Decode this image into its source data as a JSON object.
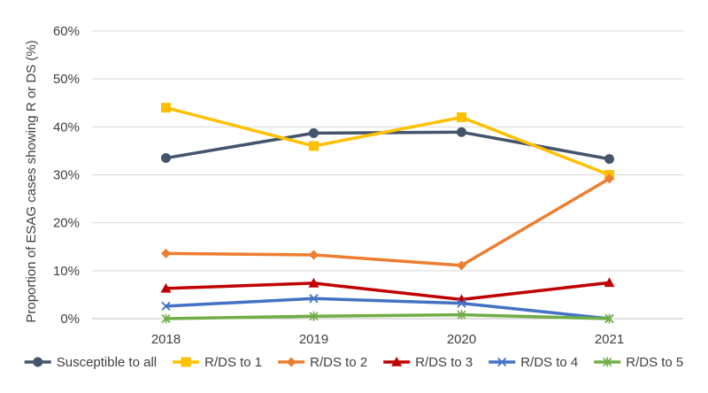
{
  "chart_data": {
    "type": "line",
    "title": "",
    "xlabel": "",
    "ylabel": "Proportion of ESAG cases showing R or DS (%)",
    "categories": [
      "2018",
      "2019",
      "2020",
      "2021"
    ],
    "ylim": [
      0,
      60
    ],
    "yticks": [
      0,
      10,
      20,
      30,
      40,
      50,
      60
    ],
    "ytick_labels": [
      "0%",
      "10%",
      "20%",
      "30%",
      "40%",
      "50%",
      "60%"
    ],
    "grid": true,
    "legend_position": "bottom",
    "series": [
      {
        "name": "Susceptible to all",
        "color": "#44546A",
        "marker": "circle",
        "values": [
          33.5,
          38.7,
          38.9,
          33.3
        ]
      },
      {
        "name": "R/DS to 1",
        "color": "#FFC000",
        "marker": "square",
        "values": [
          44.0,
          36.0,
          42.0,
          30.0
        ]
      },
      {
        "name": "R/DS to 2",
        "color": "#ED7D31",
        "marker": "diamond",
        "values": [
          13.6,
          13.3,
          11.1,
          29.2
        ]
      },
      {
        "name": "R/DS to 3",
        "color": "#C00000",
        "marker": "triangle",
        "values": [
          6.3,
          7.4,
          4.0,
          7.5
        ]
      },
      {
        "name": "R/DS to 4",
        "color": "#4472C4",
        "marker": "x",
        "values": [
          2.6,
          4.2,
          3.2,
          0.0
        ]
      },
      {
        "name": "R/DS to 5",
        "color": "#70AD47",
        "marker": "star",
        "values": [
          0.0,
          0.5,
          0.8,
          0.0
        ]
      }
    ]
  }
}
